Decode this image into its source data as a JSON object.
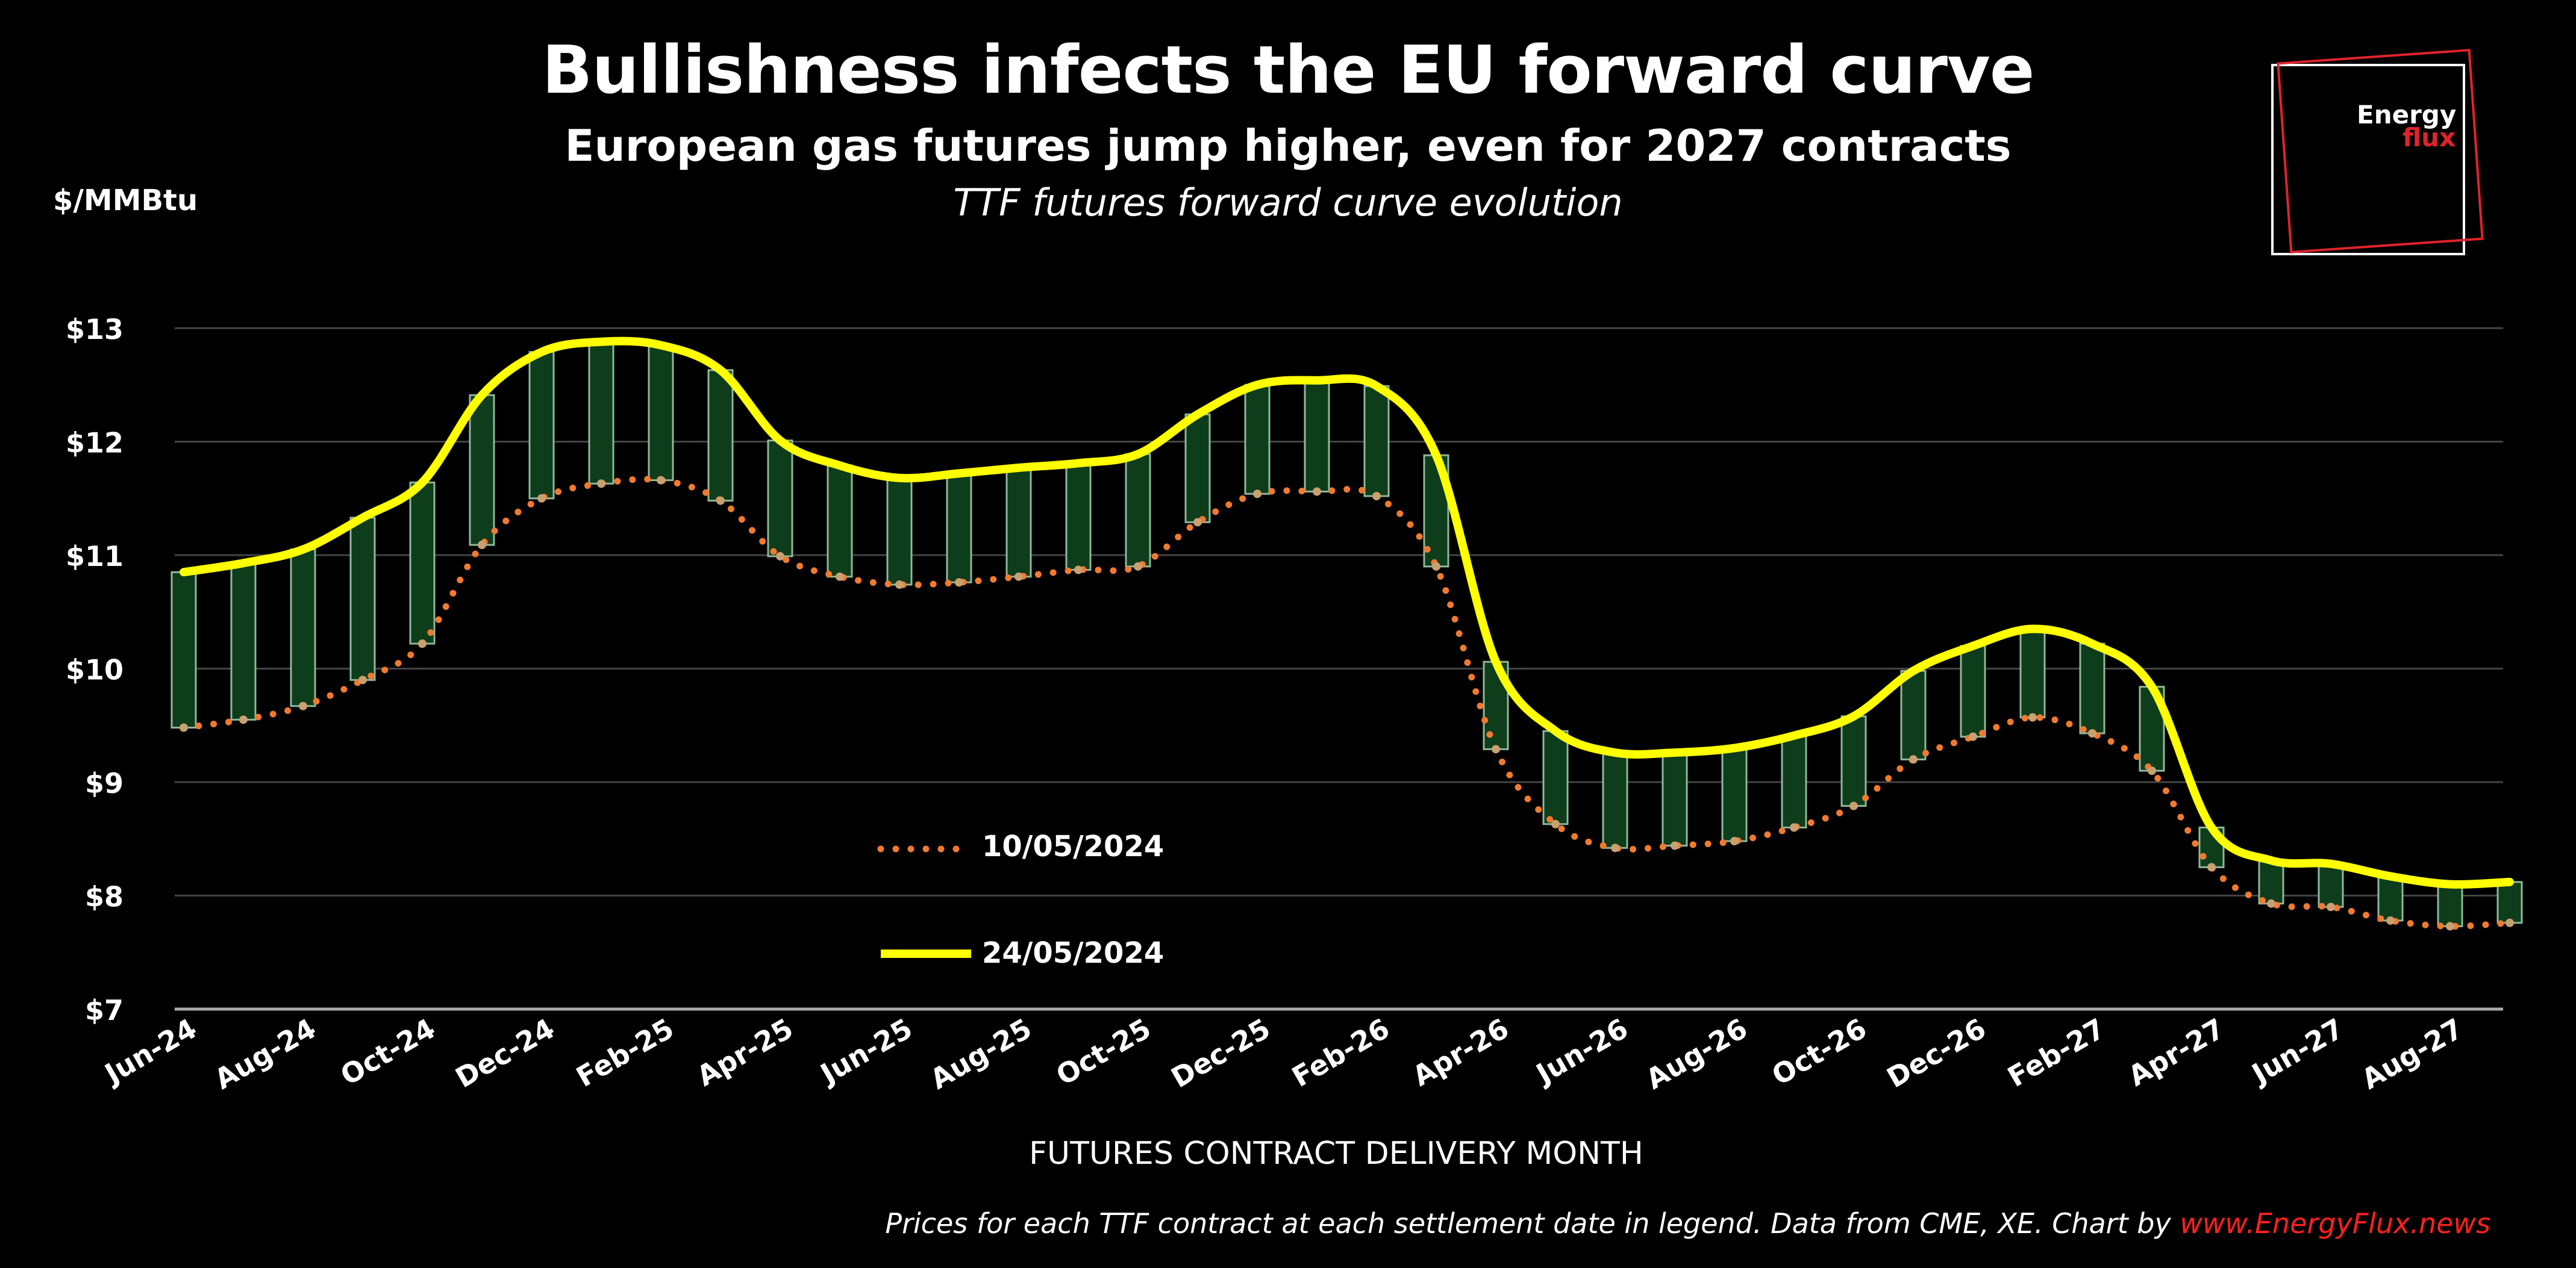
{
  "header": {
    "title": "Bullishness infects the EU forward curve",
    "subtitle": "European gas futures jump higher, even for 2027 contracts",
    "subtitle2": "TTF futures forward curve evolution",
    "unit": "$/MMBtu"
  },
  "logo": {
    "line1": "Energy",
    "line2": "flux"
  },
  "footer": {
    "source": "Prices for each TTF contract at each settlement date in legend. Data from CME, XE. Chart by ",
    "link": "www.EnergyFlux.news"
  },
  "colors": {
    "old": "#f07a30",
    "new": "#ffff00",
    "bar_fill": "#0e3d1c",
    "bar_edge": "#8fb89a",
    "grid": "#444444"
  },
  "chart_data": {
    "type": "line",
    "title": "Bullishness infects the EU forward curve",
    "xlabel": "FUTURES CONTRACT DELIVERY MONTH",
    "ylabel": "$/MMBtu",
    "ylim": [
      7,
      13
    ],
    "yticks": [
      "$7",
      "$8",
      "$9",
      "$10",
      "$11",
      "$12",
      "$13"
    ],
    "legend_placement": "center-left",
    "categories": [
      "Jun-24",
      "Jul-24",
      "Aug-24",
      "Sep-24",
      "Oct-24",
      "Nov-24",
      "Dec-24",
      "Jan-25",
      "Feb-25",
      "Mar-25",
      "Apr-25",
      "May-25",
      "Jun-25",
      "Jul-25",
      "Aug-25",
      "Sep-25",
      "Oct-25",
      "Nov-25",
      "Dec-25",
      "Jan-26",
      "Feb-26",
      "Mar-26",
      "Apr-26",
      "May-26",
      "Jun-26",
      "Jul-26",
      "Aug-26",
      "Sep-26",
      "Oct-26",
      "Nov-26",
      "Dec-26",
      "Jan-27",
      "Feb-27",
      "Mar-27",
      "Apr-27",
      "May-27",
      "Jun-27",
      "Jul-27",
      "Aug-27",
      "Sep-27"
    ],
    "tick_labels": [
      "Jun-24",
      "Aug-24",
      "Oct-24",
      "Dec-24",
      "Feb-25",
      "Apr-25",
      "Jun-25",
      "Aug-25",
      "Oct-25",
      "Dec-25",
      "Feb-26",
      "Apr-26",
      "Jun-26",
      "Aug-26",
      "Oct-26",
      "Dec-26",
      "Feb-27",
      "Apr-27",
      "Jun-27",
      "Aug-27"
    ],
    "series": [
      {
        "name": "10/05/2024",
        "style": "dotted",
        "values": [
          9.48,
          9.55,
          9.67,
          9.9,
          10.22,
          11.09,
          11.5,
          11.63,
          11.66,
          11.48,
          10.99,
          10.81,
          10.74,
          10.76,
          10.81,
          10.87,
          10.9,
          11.29,
          11.54,
          11.56,
          11.52,
          10.9,
          9.29,
          8.63,
          8.42,
          8.44,
          8.48,
          8.6,
          8.79,
          9.2,
          9.4,
          9.57,
          9.43,
          9.1,
          8.25,
          7.93,
          7.9,
          7.78,
          7.73,
          7.76
        ]
      },
      {
        "name": "24/05/2024",
        "style": "solid",
        "values": [
          10.85,
          10.93,
          11.05,
          11.33,
          11.64,
          12.41,
          12.79,
          12.88,
          12.85,
          12.63,
          12.01,
          11.79,
          11.68,
          11.72,
          11.77,
          11.81,
          11.89,
          12.24,
          12.5,
          12.54,
          12.49,
          11.88,
          10.06,
          9.45,
          9.26,
          9.26,
          9.3,
          9.41,
          9.58,
          9.98,
          10.2,
          10.35,
          10.22,
          9.84,
          8.6,
          8.31,
          8.28,
          8.17,
          8.1,
          8.12
        ]
      }
    ]
  }
}
